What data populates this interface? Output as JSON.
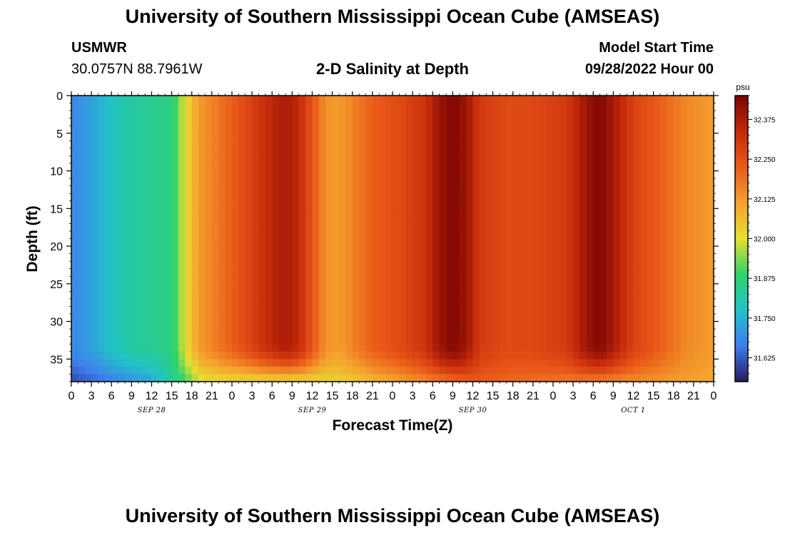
{
  "header": {
    "title": "University of Southern Mississippi Ocean Cube (AMSEAS)",
    "station_name": "USMWR",
    "station_coords": "30.0757N  88.7961W",
    "chart_title": "2-D Salinity at Depth",
    "model_start_label": "Model Start Time",
    "model_start_value": "09/28/2022 Hour 00"
  },
  "footer": {
    "title": "University of Southern Mississippi Ocean Cube (AMSEAS)"
  },
  "colors": {
    "palette": [
      "#2a1a5e",
      "#3e7df0",
      "#22c3c8",
      "#2ed36a",
      "#e7e02f",
      "#f4a22e",
      "#ea5a19",
      "#c42a0a",
      "#7a0403"
    ]
  },
  "chart_data": {
    "type": "heatmap",
    "title": "2-D Salinity at Depth",
    "xlabel": "Forecast Time(Z)",
    "ylabel": "Depth (ft)",
    "x_tick_labels": [
      "0",
      "3",
      "6",
      "9",
      "12",
      "15",
      "18",
      "21",
      "0",
      "3",
      "6",
      "9",
      "12",
      "15",
      "18",
      "21",
      "0",
      "3",
      "6",
      "9",
      "12",
      "15",
      "18",
      "21",
      "0",
      "3",
      "6",
      "9",
      "12",
      "15",
      "18",
      "21",
      "0"
    ],
    "date_labels": [
      {
        "text": "SEP 28",
        "hour": 12
      },
      {
        "text": "SEP 29",
        "hour": 36
      },
      {
        "text": "SEP 30",
        "hour": 60
      },
      {
        "text": "OCT 1",
        "hour": 84
      }
    ],
    "xlim": [
      0,
      96
    ],
    "ylim": [
      0,
      38
    ],
    "y_ticks": [
      0,
      5,
      10,
      15,
      20,
      25,
      30,
      35
    ],
    "colorbar": {
      "unit": "psu",
      "range": [
        31.55,
        32.45
      ],
      "ticks": [
        "32.375",
        "32.250",
        "32.125",
        "32.000",
        "31.875",
        "31.750",
        "31.625"
      ],
      "tick_values": [
        32.375,
        32.25,
        32.125,
        32.0,
        31.875,
        31.75,
        31.625
      ]
    },
    "surface_salinity_by_hour": [
      {
        "hour": 0,
        "psu": 31.68
      },
      {
        "hour": 3,
        "psu": 31.72
      },
      {
        "hour": 6,
        "psu": 31.78
      },
      {
        "hour": 9,
        "psu": 31.82
      },
      {
        "hour": 12,
        "psu": 31.84
      },
      {
        "hour": 15,
        "psu": 31.86
      },
      {
        "hour": 17,
        "psu": 32.0
      },
      {
        "hour": 19,
        "psu": 32.12
      },
      {
        "hour": 22,
        "psu": 32.18
      },
      {
        "hour": 26,
        "psu": 32.26
      },
      {
        "hour": 29,
        "psu": 32.33
      },
      {
        "hour": 32,
        "psu": 32.38
      },
      {
        "hour": 34,
        "psu": 32.34
      },
      {
        "hour": 36,
        "psu": 32.24
      },
      {
        "hour": 38,
        "psu": 32.14
      },
      {
        "hour": 40,
        "psu": 32.12
      },
      {
        "hour": 42,
        "psu": 32.16
      },
      {
        "hour": 45,
        "psu": 32.22
      },
      {
        "hour": 49,
        "psu": 32.26
      },
      {
        "hour": 53,
        "psu": 32.32
      },
      {
        "hour": 55,
        "psu": 32.4
      },
      {
        "hour": 57,
        "psu": 32.44
      },
      {
        "hour": 59,
        "psu": 32.4
      },
      {
        "hour": 61,
        "psu": 32.3
      },
      {
        "hour": 65,
        "psu": 32.26
      },
      {
        "hour": 70,
        "psu": 32.27
      },
      {
        "hour": 74,
        "psu": 32.3
      },
      {
        "hour": 77,
        "psu": 32.4
      },
      {
        "hour": 79,
        "psu": 32.44
      },
      {
        "hour": 81,
        "psu": 32.38
      },
      {
        "hour": 84,
        "psu": 32.28
      },
      {
        "hour": 88,
        "psu": 32.22
      },
      {
        "hour": 92,
        "psu": 32.15
      },
      {
        "hour": 96,
        "psu": 32.12
      }
    ],
    "near_bottom_salinity": [
      {
        "hour": 0,
        "depth": 38,
        "psu": 31.6
      },
      {
        "hour": 12,
        "depth": 38,
        "psu": 31.72
      },
      {
        "hour": 20,
        "depth": 38,
        "psu": 32.0
      },
      {
        "hour": 40,
        "depth": 38,
        "psu": 32.02
      },
      {
        "hour": 60,
        "depth": 38,
        "psu": 32.22
      },
      {
        "hour": 96,
        "depth": 38,
        "psu": 32.1
      }
    ]
  }
}
